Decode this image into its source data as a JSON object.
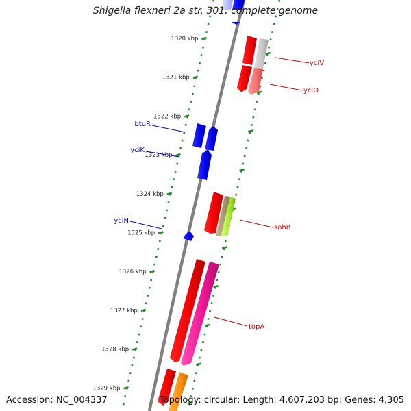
{
  "title": "Shigella flexneri 2a str. 301, complete genome",
  "accession": "Accession: NC_004337",
  "summary": "Topology: circular; Length: 4,607,203 bp; Genes: 4,305",
  "colors": {
    "backbone": "#808080",
    "ruler": "#228b22",
    "reverse_label": "#0000cc",
    "forward_label": "#cc0000"
  },
  "ticks": [
    {
      "label": "1320 kbp"
    },
    {
      "label": "1321 kbp"
    },
    {
      "label": "1322 kbp"
    },
    {
      "label": "1323 kbp"
    },
    {
      "label": "1324 kbp"
    },
    {
      "label": "1325 kbp"
    },
    {
      "label": "1326 kbp"
    },
    {
      "label": "1327 kbp"
    },
    {
      "label": "1328 kbp"
    },
    {
      "label": "1329 kbp"
    }
  ],
  "genes": [
    {
      "label": "yciV",
      "strand": "forward"
    },
    {
      "label": "yciO",
      "strand": "forward"
    },
    {
      "label": "btuR",
      "strand": "reverse"
    },
    {
      "label": "yciK",
      "strand": "reverse"
    },
    {
      "label": "yciN",
      "strand": "reverse"
    },
    {
      "label": "sohB",
      "strand": "forward"
    },
    {
      "label": "topA",
      "strand": "forward"
    }
  ]
}
